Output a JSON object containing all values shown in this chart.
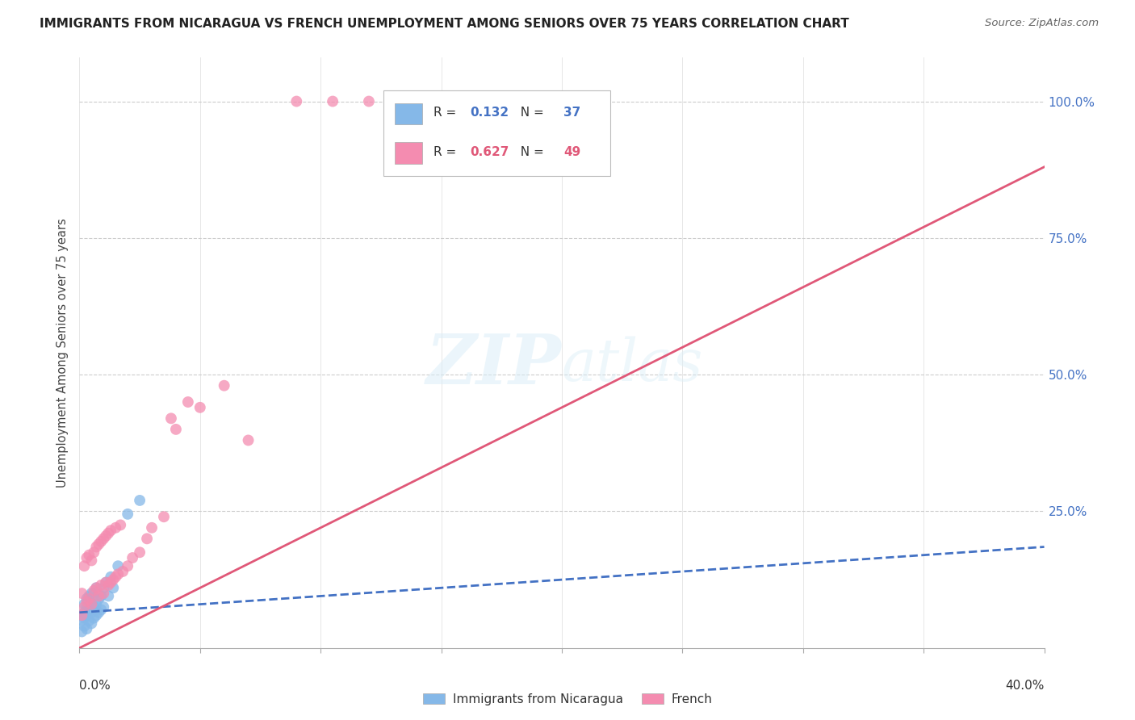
{
  "title": "IMMIGRANTS FROM NICARAGUA VS FRENCH UNEMPLOYMENT AMONG SENIORS OVER 75 YEARS CORRELATION CHART",
  "source": "Source: ZipAtlas.com",
  "ylabel": "Unemployment Among Seniors over 75 years",
  "ytick_labels": [
    "100.0%",
    "75.0%",
    "50.0%",
    "25.0%"
  ],
  "ytick_values": [
    1.0,
    0.75,
    0.5,
    0.25
  ],
  "xlim": [
    0.0,
    0.4
  ],
  "ylim": [
    0.0,
    1.08
  ],
  "color_blue": "#85b8e8",
  "color_pink": "#f48cb0",
  "color_line_blue": "#4472c4",
  "color_line_pink": "#e05878",
  "color_ytick": "#4472c4",
  "watermark_zip": "ZIP",
  "watermark_atlas": "atlas",
  "blue_scatter_x": [
    0.001,
    0.001,
    0.001,
    0.002,
    0.002,
    0.002,
    0.002,
    0.003,
    0.003,
    0.003,
    0.003,
    0.004,
    0.004,
    0.004,
    0.005,
    0.005,
    0.005,
    0.005,
    0.006,
    0.006,
    0.006,
    0.007,
    0.007,
    0.007,
    0.008,
    0.008,
    0.009,
    0.009,
    0.01,
    0.01,
    0.011,
    0.012,
    0.013,
    0.014,
    0.016,
    0.02,
    0.025
  ],
  "blue_scatter_y": [
    0.03,
    0.05,
    0.06,
    0.04,
    0.055,
    0.065,
    0.08,
    0.035,
    0.06,
    0.075,
    0.09,
    0.05,
    0.07,
    0.095,
    0.045,
    0.065,
    0.08,
    0.1,
    0.055,
    0.075,
    0.1,
    0.06,
    0.08,
    0.11,
    0.065,
    0.09,
    0.07,
    0.095,
    0.075,
    0.11,
    0.12,
    0.095,
    0.13,
    0.11,
    0.15,
    0.245,
    0.27
  ],
  "pink_scatter_x": [
    0.001,
    0.001,
    0.002,
    0.002,
    0.003,
    0.003,
    0.004,
    0.004,
    0.005,
    0.005,
    0.006,
    0.006,
    0.007,
    0.007,
    0.008,
    0.008,
    0.009,
    0.009,
    0.01,
    0.01,
    0.011,
    0.011,
    0.012,
    0.012,
    0.013,
    0.013,
    0.014,
    0.015,
    0.015,
    0.016,
    0.017,
    0.018,
    0.02,
    0.022,
    0.025,
    0.028,
    0.03,
    0.035,
    0.038,
    0.04,
    0.045,
    0.05,
    0.06,
    0.07,
    0.09,
    0.105,
    0.12,
    0.135,
    0.155
  ],
  "pink_scatter_y": [
    0.06,
    0.1,
    0.075,
    0.15,
    0.085,
    0.165,
    0.09,
    0.17,
    0.08,
    0.16,
    0.105,
    0.175,
    0.11,
    0.185,
    0.095,
    0.19,
    0.115,
    0.195,
    0.1,
    0.2,
    0.12,
    0.205,
    0.115,
    0.21,
    0.12,
    0.215,
    0.125,
    0.13,
    0.22,
    0.135,
    0.225,
    0.14,
    0.15,
    0.165,
    0.175,
    0.2,
    0.22,
    0.24,
    0.42,
    0.4,
    0.45,
    0.44,
    0.48,
    0.38,
    1.0,
    1.0,
    1.0,
    1.0,
    1.0
  ],
  "blue_line_x0": 0.0,
  "blue_line_x1": 0.4,
  "blue_line_y0": 0.065,
  "blue_line_y1": 0.185,
  "pink_line_x0": 0.0,
  "pink_line_x1": 0.4,
  "pink_line_y0": 0.0,
  "pink_line_y1": 0.88
}
